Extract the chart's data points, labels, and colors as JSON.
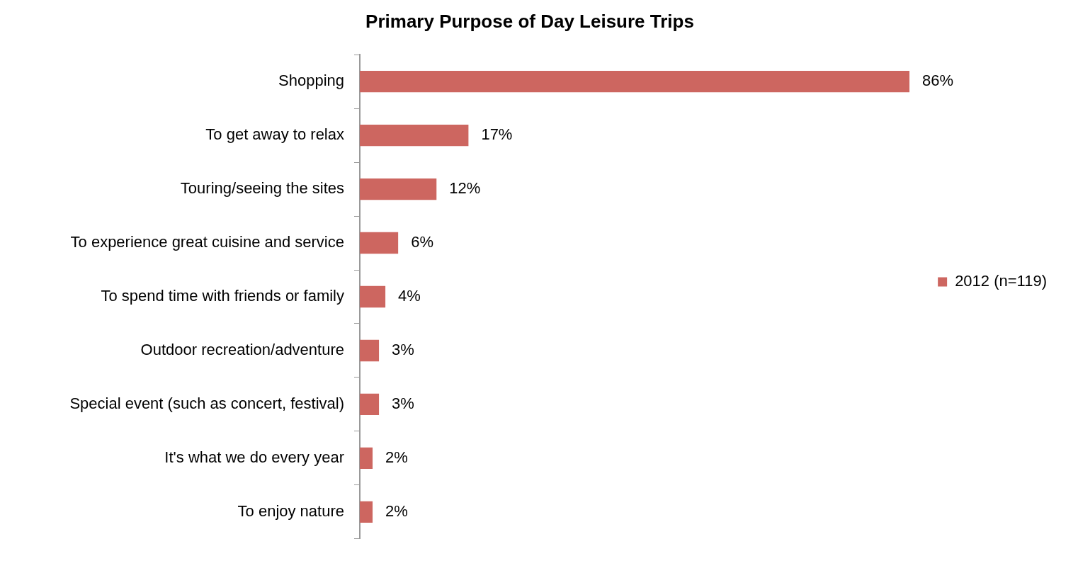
{
  "chart_data": {
    "type": "bar",
    "orientation": "horizontal",
    "title": "Primary Purpose of Day Leisure Trips",
    "categories": [
      "Shopping",
      "To get away to relax",
      "Touring/seeing the sites",
      "To experience great cuisine and service",
      "To spend time with friends or family",
      "Outdoor recreation/adventure",
      "Special event (such as concert, festival)",
      "It's what we do every year",
      "To enjoy nature"
    ],
    "series": [
      {
        "name": "2012 (n=119)",
        "color": "#cd6660",
        "values": [
          86,
          17,
          12,
          6,
          4,
          3,
          3,
          2,
          2
        ],
        "value_labels": [
          "86%",
          "17%",
          "12%",
          "6%",
          "4%",
          "3%",
          "3%",
          "2%",
          "2%"
        ]
      }
    ],
    "legend": "right",
    "grid": false,
    "tick_labels": "y"
  }
}
